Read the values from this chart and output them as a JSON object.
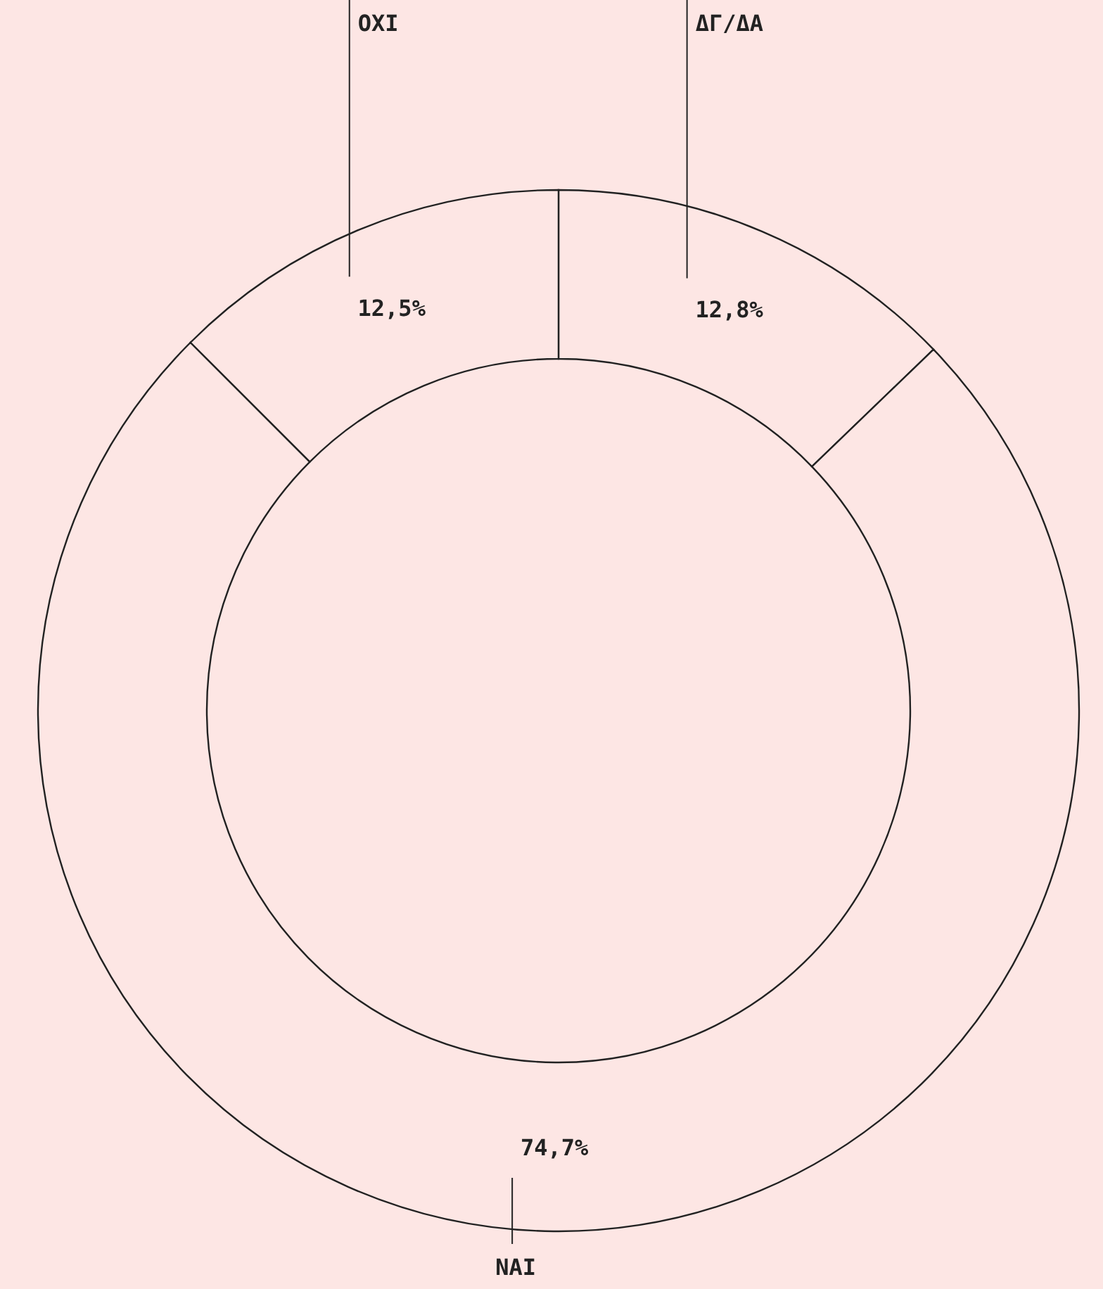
{
  "chart_data": {
    "type": "donut",
    "categories": [
      "ΔΓ/ΔΑ",
      "ΝΑΙ",
      "ΟΧΙ"
    ],
    "values": [
      12.8,
      74.7,
      12.5
    ],
    "value_labels": [
      "12,8%",
      "74,7%",
      "12,5%"
    ],
    "colors": [
      "#fde6e4",
      "#fde6e4",
      "#fde6e4"
    ]
  }
}
